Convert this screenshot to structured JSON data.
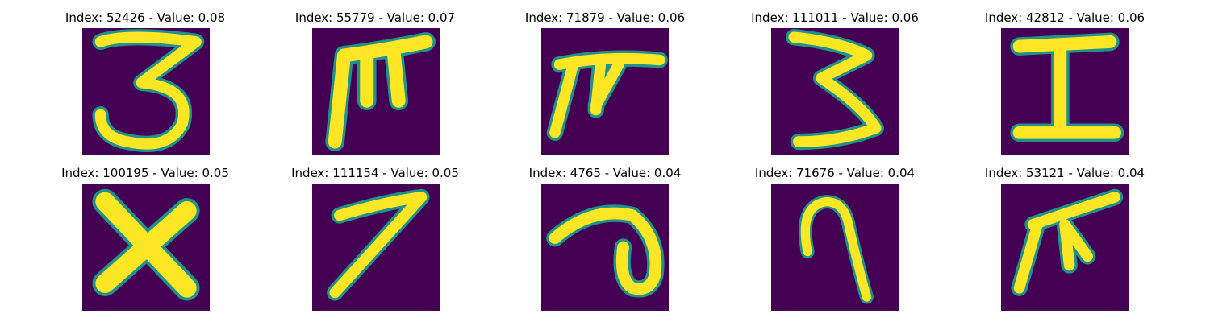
{
  "colors": {
    "background": "#440154",
    "stroke_core": "#fde725",
    "stroke_edge": "#21918c"
  },
  "panels": [
    {
      "title": "Index: 52426 - Value: 0.08",
      "glyph": "three-glyph"
    },
    {
      "title": "Index: 55779 - Value: 0.07",
      "glyph": "m-glyph"
    },
    {
      "title": "Index: 71879 - Value: 0.06",
      "glyph": "pi-like-glyph"
    },
    {
      "title": "Index: 111011 - Value: 0.06",
      "glyph": "three-glyph"
    },
    {
      "title": "Index: 42812 - Value: 0.06",
      "glyph": "i-glyph"
    },
    {
      "title": "Index: 100195 - Value: 0.05",
      "glyph": "x-glyph"
    },
    {
      "title": "Index: 111154 - Value: 0.05",
      "glyph": "seven-glyph"
    },
    {
      "title": "Index: 4765 - Value: 0.04",
      "glyph": "curl-glyph"
    },
    {
      "title": "Index: 71676 - Value: 0.04",
      "glyph": "nine-glyph"
    },
    {
      "title": "Index: 53121 - Value: 0.04",
      "glyph": "pi-like-glyph"
    }
  ]
}
